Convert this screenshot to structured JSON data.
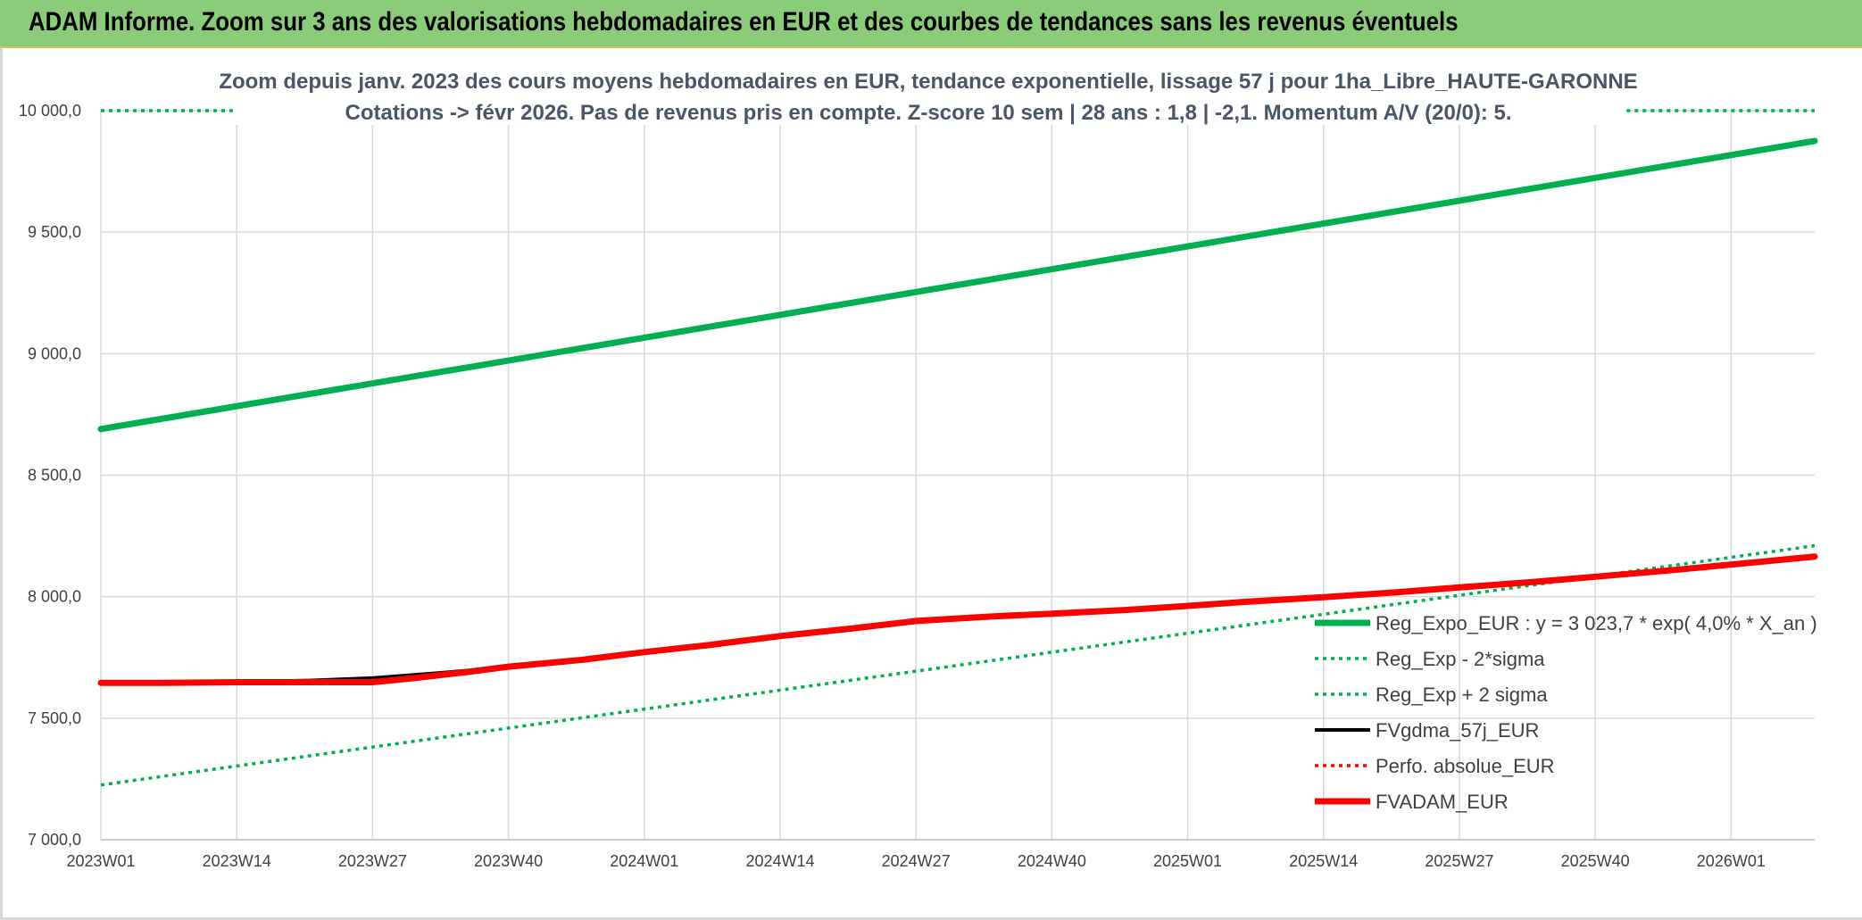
{
  "banner": {
    "title": "ADAM Informe. Zoom sur 3 ans des valorisations hebdomadaires en EUR et des courbes de tendances sans les revenus éventuels"
  },
  "chart_data": {
    "type": "line",
    "title_lines": [
      "Zoom depuis janv. 2023 des cours moyens hebdomadaires en EUR, tendance exponentielle, lissage 57 j pour 1ha_Libre_HAUTE-GARONNE",
      "Cotations -> févr 2026. Pas de revenus pris en compte. Z-score 10 sem | 28 ans : 1,8 | -2,1. Momentum A/V (20/0): 5."
    ],
    "xlabel": "",
    "ylabel": "",
    "ylim": [
      7000,
      10000
    ],
    "yticks": [
      7000,
      7500,
      8000,
      8500,
      9000,
      9500,
      10000
    ],
    "ytick_labels": [
      "7 000,0",
      "7 500,0",
      "8 000,0",
      "8 500,0",
      "9 000,0",
      "9 500,0",
      "10 000,0"
    ],
    "x_range_weeks": [
      0,
      164
    ],
    "xticks": [
      0,
      13,
      26,
      39,
      52,
      65,
      78,
      91,
      104,
      117,
      130,
      143,
      156
    ],
    "xtick_labels": [
      "2023W01",
      "2023W14",
      "2023W27",
      "2023W40",
      "2024W01",
      "2024W14",
      "2024W27",
      "2024W40",
      "2025W01",
      "2025W14",
      "2025W27",
      "2025W40",
      "2026W01"
    ],
    "grid": true,
    "legend_position": "bottom-right",
    "series": [
      {
        "name": "Reg_Expo_EUR : y = 3 023,7 * exp( 4,0% *  X_an )",
        "color": "#00b050",
        "style": "solid",
        "thick": true,
        "points": [
          [
            0,
            8690
          ],
          [
            164,
            9875
          ]
        ]
      },
      {
        "name": "Reg_Exp - 2*sigma",
        "color": "#00b050",
        "style": "dotted",
        "thick": false,
        "points": [
          [
            0,
            7225
          ],
          [
            164,
            8210
          ]
        ]
      },
      {
        "name": "Reg_Exp + 2 sigma",
        "color": "#00b050",
        "style": "dotted",
        "thick": false,
        "points": [
          [
            0,
            10000
          ],
          [
            13,
            10000
          ]
        ],
        "points_extra": [
          [
            146,
            10000
          ],
          [
            164,
            10000
          ]
        ]
      },
      {
        "name": "FVgdma_57j_EUR",
        "color": "#000000",
        "style": "solid",
        "thick": false,
        "points": [
          [
            0,
            7645
          ],
          [
            6,
            7645
          ],
          [
            13,
            7650
          ],
          [
            20,
            7655
          ],
          [
            26,
            7665
          ],
          [
            32,
            7685
          ],
          [
            39,
            7710
          ],
          [
            46,
            7735
          ],
          [
            52,
            7770
          ],
          [
            58,
            7795
          ],
          [
            65,
            7835
          ],
          [
            72,
            7865
          ],
          [
            78,
            7895
          ],
          [
            85,
            7915
          ],
          [
            91,
            7930
          ],
          [
            98,
            7945
          ],
          [
            104,
            7960
          ],
          [
            110,
            7980
          ],
          [
            117,
            7995
          ],
          [
            124,
            8015
          ],
          [
            130,
            8035
          ],
          [
            137,
            8060
          ],
          [
            143,
            8080
          ],
          [
            150,
            8105
          ],
          [
            156,
            8130
          ],
          [
            164,
            8160
          ]
        ]
      },
      {
        "name": "Perfo. absolue_EUR",
        "color": "#ff0000",
        "style": "dotted",
        "thick": false,
        "points": [
          [
            0,
            7645
          ],
          [
            26,
            7650
          ],
          [
            39,
            7712
          ],
          [
            52,
            7772
          ],
          [
            65,
            7838
          ],
          [
            78,
            7900
          ],
          [
            91,
            7930
          ],
          [
            104,
            7962
          ],
          [
            117,
            7998
          ],
          [
            130,
            8038
          ],
          [
            143,
            8082
          ],
          [
            156,
            8132
          ],
          [
            164,
            8165
          ]
        ]
      },
      {
        "name": "FVADAM_EUR",
        "color": "#ff0000",
        "style": "solid",
        "thick": true,
        "points": [
          [
            0,
            7645
          ],
          [
            6,
            7645
          ],
          [
            13,
            7648
          ],
          [
            20,
            7648
          ],
          [
            26,
            7648
          ],
          [
            30,
            7665
          ],
          [
            35,
            7690
          ],
          [
            39,
            7712
          ],
          [
            46,
            7740
          ],
          [
            52,
            7772
          ],
          [
            58,
            7800
          ],
          [
            65,
            7838
          ],
          [
            72,
            7870
          ],
          [
            78,
            7900
          ],
          [
            85,
            7918
          ],
          [
            91,
            7930
          ],
          [
            98,
            7945
          ],
          [
            104,
            7962
          ],
          [
            110,
            7980
          ],
          [
            117,
            7998
          ],
          [
            124,
            8018
          ],
          [
            130,
            8038
          ],
          [
            137,
            8060
          ],
          [
            143,
            8082
          ],
          [
            150,
            8108
          ],
          [
            156,
            8132
          ],
          [
            164,
            8165
          ]
        ]
      }
    ]
  }
}
